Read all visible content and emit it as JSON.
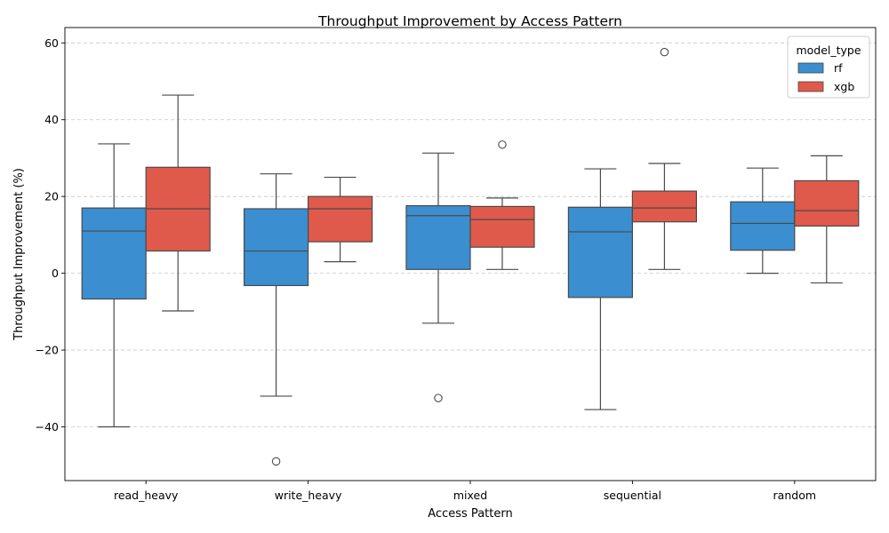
{
  "chart_data": {
    "type": "box",
    "title": "Throughput Improvement by Access Pattern",
    "xlabel": "Access Pattern",
    "ylabel": "Throughput Improvement (%)",
    "ylim": [
      -54,
      64
    ],
    "yticks": [
      -40,
      -20,
      0,
      20,
      40,
      60
    ],
    "ytick_labels": [
      "−40",
      "−20",
      "0",
      "20",
      "40",
      "60"
    ],
    "grid": "horizontal dashed",
    "categories": [
      "read_heavy",
      "write_heavy",
      "mixed",
      "sequential",
      "random"
    ],
    "legend": {
      "title": "model_type",
      "position": "top-right"
    },
    "series": [
      {
        "name": "rf",
        "color": "#3b8ed0",
        "boxes": [
          {
            "whisker_low": -40,
            "q1": -6.7,
            "median": 11,
            "q3": 17,
            "whisker_high": 33.7,
            "outliers": []
          },
          {
            "whisker_low": -32,
            "q1": -3.2,
            "median": 5.8,
            "q3": 16.8,
            "whisker_high": 25.9,
            "outliers": [
              -49
            ]
          },
          {
            "whisker_low": -13,
            "q1": 1,
            "median": 15,
            "q3": 17.6,
            "whisker_high": 31.3,
            "outliers": [
              -32.5
            ]
          },
          {
            "whisker_low": -35.5,
            "q1": -6.3,
            "median": 10.8,
            "q3": 17.2,
            "whisker_high": 27.2,
            "outliers": []
          },
          {
            "whisker_low": 0,
            "q1": 6,
            "median": 13,
            "q3": 18.6,
            "whisker_high": 27.4,
            "outliers": []
          }
        ]
      },
      {
        "name": "xgb",
        "color": "#e05a4b",
        "boxes": [
          {
            "whisker_low": -9.8,
            "q1": 5.8,
            "median": 16.8,
            "q3": 27.6,
            "whisker_high": 46.4,
            "outliers": []
          },
          {
            "whisker_low": 3,
            "q1": 8.2,
            "median": 16.8,
            "q3": 20,
            "whisker_high": 25,
            "outliers": []
          },
          {
            "whisker_low": 1,
            "q1": 6.8,
            "median": 14,
            "q3": 17.4,
            "whisker_high": 19.6,
            "outliers": [
              33.5
            ]
          },
          {
            "whisker_low": 1,
            "q1": 13.4,
            "median": 17,
            "q3": 21.4,
            "whisker_high": 28.6,
            "outliers": [
              57.6
            ]
          },
          {
            "whisker_low": -2.5,
            "q1": 12.3,
            "median": 16.3,
            "q3": 24.1,
            "whisker_high": 30.6,
            "outliers": []
          }
        ]
      }
    ]
  }
}
